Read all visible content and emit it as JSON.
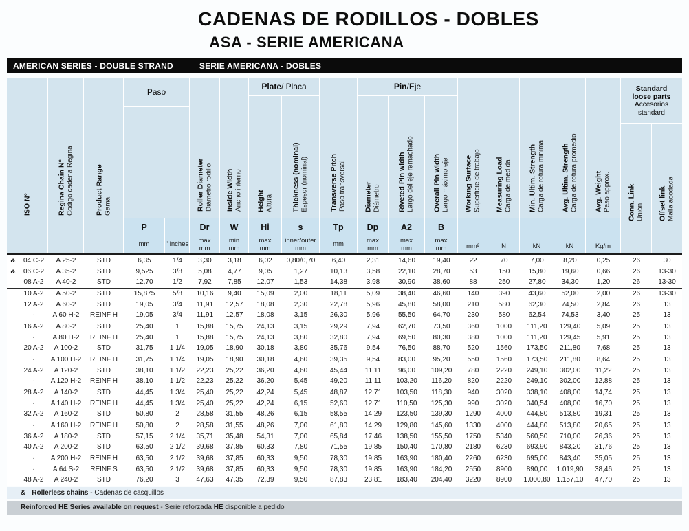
{
  "page": {
    "title": "CADENAS DE RODILLOS - DOBLES",
    "subtitle": "ASA - SERIE AMERICANA",
    "band_left": "AMERICAN SERIES - DOUBLE STRAND",
    "band_right": "SERIE AMERICANA - DOBLES"
  },
  "header": {
    "groups": {
      "paso": "Paso",
      "plate_en": "Plate",
      "plate_es": " / Placa",
      "pin_en": "Pin",
      "pin_es": "/Eje",
      "loose_en": "Standard loose parts",
      "loose_es": "Accesorios standard"
    },
    "labels": {
      "iso_en": "ISO N°",
      "iso_es": "",
      "regina_en": "Regina Chain N°",
      "regina_es": "Codigo cadena Regina",
      "range_en": "Product Range",
      "range_es": "Gama",
      "dr_en": "Roller Diameter",
      "dr_es": "Diámetro rodillo",
      "w_en": "Inside Width",
      "w_es": "Ancho interno",
      "hi_en": "Height",
      "hi_es": "Altura",
      "s_en": "Thickness (nominal)",
      "s_es": "Espesor (nominal)",
      "tp_en": "Transverse Pitch",
      "tp_es": "Paso transversal",
      "dp_en": "Diameter",
      "dp_es": "Diámetro",
      "a2_en": "Riveted Pin width",
      "a2_es": "Largo del eje remachado",
      "b_en": "Overall Pin width",
      "b_es": "Largo máximo eje",
      "ws_en": "Working Surface",
      "ws_es": "Superficie de trabajo",
      "ml_en": "Measuring Load",
      "ml_es": "Carga de medida",
      "mins_en": "Min. Ultim. Strength",
      "mins_es": "Carga de rotura minima",
      "avgs_en": "Avg. Ultim. Strength",
      "avgs_es": "Carga de rotura promedio",
      "wt_en": "Avg. Weight",
      "wt_es": "Peso approx.",
      "cl_en": "Conn. Link",
      "cl_es": "Unión",
      "ol_en": "Offset link",
      "ol_es": "Malla acodada"
    },
    "symbols": {
      "p": "P",
      "dr": "Dr",
      "w": "W",
      "hi": "Hi",
      "s": "s",
      "tp": "Tp",
      "dp": "Dp",
      "a2": "A2",
      "b": "B"
    },
    "units": {
      "p_mm": "mm",
      "p_in": "\" inches",
      "dr": "max\nmm",
      "w": "min\nmm",
      "hi": "max\nmm",
      "s": "inner/outer\nmm",
      "tp": "mm",
      "dp": "max\nmm",
      "a2": "max\nmm",
      "b": "max\nmm",
      "ws": "mm²",
      "ml": "N",
      "mins": "kN",
      "avgs": "kN",
      "wt": "Kg/m"
    }
  },
  "table": {
    "col_ids": [
      "iso",
      "regina",
      "range",
      "p-mm",
      "p-inches",
      "dr",
      "w",
      "hi",
      "s",
      "tp",
      "dp",
      "a2",
      "b",
      "working-surface",
      "measuring-load",
      "min-ultim-strength",
      "avg-ultim-strength",
      "avg-weight",
      "conn-link",
      "offset-link"
    ],
    "rows": [
      {
        "mark": "&",
        "cells": [
          "04 C-2",
          "A 25-2",
          "STD",
          "6,35",
          "1/4",
          "3,30",
          "3,18",
          "6,02",
          "0,80/0,70",
          "6,40",
          "2,31",
          "14,60",
          "19,40",
          "22",
          "70",
          "7,00",
          "8,20",
          "0,25",
          "26",
          "30"
        ]
      },
      {
        "mark": "&",
        "cells": [
          "06 C-2",
          "A 35-2",
          "STD",
          "9,525",
          "3/8",
          "5,08",
          "4,77",
          "9,05",
          "1,27",
          "10,13",
          "3,58",
          "22,10",
          "28,70",
          "53",
          "150",
          "15,80",
          "19,60",
          "0,66",
          "26",
          "13-30"
        ]
      },
      {
        "mark": "",
        "cells": [
          "08 A-2",
          "A 40-2",
          "STD",
          "12,70",
          "1/2",
          "7,92",
          "7,85",
          "12,07",
          "1,53",
          "14,38",
          "3,98",
          "30,90",
          "38,60",
          "88",
          "250",
          "27,80",
          "34,30",
          "1,20",
          "26",
          "13-30"
        ]
      },
      {
        "mark": "",
        "cells": [
          "10 A-2",
          "A 50-2",
          "STD",
          "15,875",
          "5/8",
          "10,16",
          "9,40",
          "15,09",
          "2,00",
          "18,11",
          "5,09",
          "38,40",
          "46,60",
          "140",
          "390",
          "43,60",
          "52,00",
          "2,00",
          "26",
          "13-30"
        ]
      },
      {
        "mark": "",
        "cells": [
          "12 A-2",
          "A 60-2",
          "STD",
          "19,05",
          "3/4",
          "11,91",
          "12,57",
          "18,08",
          "2,30",
          "22,78",
          "5,96",
          "45,80",
          "58,00",
          "210",
          "580",
          "62,30",
          "74,50",
          "2,84",
          "26",
          "13"
        ]
      },
      {
        "mark": "",
        "cells": [
          "·",
          "A 60 H-2",
          "REINF H",
          "19,05",
          "3/4",
          "11,91",
          "12,57",
          "18,08",
          "3,15",
          "26,30",
          "5,96",
          "55,50",
          "64,70",
          "230",
          "580",
          "62,54",
          "74,53",
          "3,40",
          "25",
          "13"
        ]
      },
      {
        "mark": "",
        "cells": [
          "16 A-2",
          "A 80-2",
          "STD",
          "25,40",
          "1",
          "15,88",
          "15,75",
          "24,13",
          "3,15",
          "29,29",
          "7,94",
          "62,70",
          "73,50",
          "360",
          "1000",
          "111,20",
          "129,40",
          "5,09",
          "25",
          "13"
        ]
      },
      {
        "mark": "",
        "cells": [
          "·",
          "A 80 H-2",
          "REINF H",
          "25,40",
          "1",
          "15,88",
          "15,75",
          "24,13",
          "3,80",
          "32,80",
          "7,94",
          "69,50",
          "80,30",
          "380",
          "1000",
          "111,20",
          "129,45",
          "5,91",
          "25",
          "13"
        ]
      },
      {
        "mark": "",
        "cells": [
          "20 A-2",
          "A 100-2",
          "STD",
          "31,75",
          "1 1/4",
          "19,05",
          "18,90",
          "30,18",
          "3,80",
          "35,76",
          "9,54",
          "76,50",
          "88,70",
          "520",
          "1560",
          "173,50",
          "211,80",
          "7,68",
          "25",
          "13"
        ]
      },
      {
        "mark": "",
        "cells": [
          "·",
          "A 100 H-2",
          "REINF H",
          "31,75",
          "1 1/4",
          "19,05",
          "18,90",
          "30,18",
          "4,60",
          "39,35",
          "9,54",
          "83,00",
          "95,20",
          "550",
          "1560",
          "173,50",
          "211,80",
          "8,64",
          "25",
          "13"
        ]
      },
      {
        "mark": "",
        "cells": [
          "24 A-2",
          "A 120-2",
          "STD",
          "38,10",
          "1 1/2",
          "22,23",
          "25,22",
          "36,20",
          "4,60",
          "45,44",
          "11,11",
          "96,00",
          "109,20",
          "780",
          "2220",
          "249,10",
          "302,00",
          "11,22",
          "25",
          "13"
        ]
      },
      {
        "mark": "",
        "cells": [
          "·",
          "A 120 H-2",
          "REINF H",
          "38,10",
          "1 1/2",
          "22,23",
          "25,22",
          "36,20",
          "5,45",
          "49,20",
          "11,11",
          "103,20",
          "116,20",
          "820",
          "2220",
          "249,10",
          "302,00",
          "12,88",
          "25",
          "13"
        ]
      },
      {
        "mark": "",
        "cells": [
          "28 A-2",
          "A 140-2",
          "STD",
          "44,45",
          "1 3/4",
          "25,40",
          "25,22",
          "42,24",
          "5,45",
          "48,87",
          "12,71",
          "103,50",
          "118,30",
          "940",
          "3020",
          "338,10",
          "408,00",
          "14,74",
          "25",
          "13"
        ]
      },
      {
        "mark": "",
        "cells": [
          "·",
          "A 140 H-2",
          "REINF H",
          "44,45",
          "1 3/4",
          "25,40",
          "25,22",
          "42,24",
          "6,15",
          "52,60",
          "12,71",
          "110,50",
          "125,30",
          "990",
          "3020",
          "340,54",
          "408,00",
          "16,70",
          "25",
          "13"
        ]
      },
      {
        "mark": "",
        "cells": [
          "32 A-2",
          "A 160-2",
          "STD",
          "50,80",
          "2",
          "28,58",
          "31,55",
          "48,26",
          "6,15",
          "58,55",
          "14,29",
          "123,50",
          "139,30",
          "1290",
          "4000",
          "444,80",
          "513,80",
          "19,31",
          "25",
          "13"
        ]
      },
      {
        "mark": "",
        "cells": [
          "·",
          "A 160 H-2",
          "REINF H",
          "50,80",
          "2",
          "28,58",
          "31,55",
          "48,26",
          "7,00",
          "61,80",
          "14,29",
          "129,80",
          "145,60",
          "1330",
          "4000",
          "444,80",
          "513,80",
          "20,65",
          "25",
          "13"
        ]
      },
      {
        "mark": "",
        "cells": [
          "36 A-2",
          "A 180-2",
          "STD",
          "57,15",
          "2 1/4",
          "35,71",
          "35,48",
          "54,31",
          "7,00",
          "65,84",
          "17,46",
          "138,50",
          "155,50",
          "1750",
          "5340",
          "560,50",
          "710,00",
          "26,36",
          "25",
          "13"
        ]
      },
      {
        "mark": "",
        "cells": [
          "40 A-2",
          "A 200-2",
          "STD",
          "63,50",
          "2 1/2",
          "39,68",
          "37,85",
          "60,33",
          "7,80",
          "71,55",
          "19,85",
          "150,40",
          "170,80",
          "2180",
          "6230",
          "693,90",
          "843,20",
          "31,76",
          "25",
          "13"
        ]
      },
      {
        "mark": "",
        "cells": [
          "·",
          "A 200 H-2",
          "REINF H",
          "63,50",
          "2 1/2",
          "39,68",
          "37,85",
          "60,33",
          "9,50",
          "78,30",
          "19,85",
          "163,90",
          "180,40",
          "2260",
          "6230",
          "695,00",
          "843,40",
          "35,05",
          "25",
          "13"
        ]
      },
      {
        "mark": "",
        "cells": [
          "·",
          "A 64 S-2",
          "REINF S",
          "63,50",
          "2 1/2",
          "39,68",
          "37,85",
          "60,33",
          "9,50",
          "78,30",
          "19,85",
          "163,90",
          "184,20",
          "2550",
          "8900",
          "890,00",
          "1.019,90",
          "38,46",
          "25",
          "13"
        ]
      },
      {
        "mark": "",
        "cells": [
          "48 A-2",
          "A 240-2",
          "STD",
          "76,20",
          "3",
          "47,63",
          "47,35",
          "72,39",
          "9,50",
          "87,83",
          "23,81",
          "183,40",
          "204,40",
          "3220",
          "8900",
          "1.000,80",
          "1.157,10",
          "47,70",
          "25",
          "13"
        ]
      }
    ]
  },
  "notes": {
    "mark": "&",
    "n1_bold": "Rollerless chains",
    "n1_rest": " - Cadenas de casquillos",
    "n2_bold": "Reinforced HE Series available on request",
    "n2_mid": " - Serie reforzada ",
    "n2_bold2": "HE",
    "n2_rest": " disponible a pedido"
  }
}
